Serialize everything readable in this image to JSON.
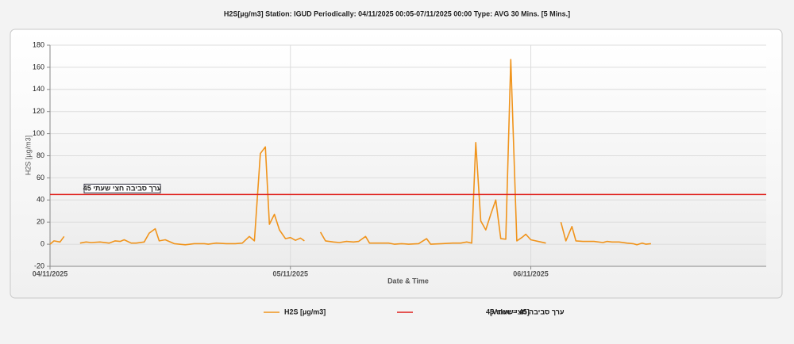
{
  "chart_data": {
    "type": "line",
    "title": "H2S[µg/m3] Station: IGUD  Periodically: 04/11/2025 00:05-07/11/2025 00:00  Type: AVG 30 Mins. [5 Mins.]",
    "x_label": "Date & Time",
    "y_label": "H2S [µg/m3]",
    "xlim": [
      0,
      71.5
    ],
    "xticks": [
      {
        "value": 0,
        "label": "04/11/2025"
      },
      {
        "value": 24,
        "label": "05/11/2025"
      },
      {
        "value": 48,
        "label": "06/11/2025"
      }
    ],
    "ylim": [
      -20,
      180
    ],
    "yticks": [
      -20,
      0,
      20,
      40,
      60,
      80,
      100,
      120,
      140,
      160,
      180
    ],
    "grid": true,
    "series": [
      {
        "name": "H2S [µg/m3]",
        "color": "#f0941c",
        "x": [
          0,
          0.4,
          1.0,
          1.4,
          2,
          3.0,
          3.6,
          4.1,
          5.0,
          5.9,
          6.5,
          7.0,
          7.4,
          8.1,
          8.6,
          9.4,
          9.9,
          10.5,
          10.9,
          11.5,
          12.4,
          13.5,
          14.4,
          15.4,
          15.8,
          16.6,
          17.6,
          18.5,
          19.2,
          19.9,
          20.4,
          21.0,
          21.5,
          21.9,
          22.4,
          22.9,
          23.5,
          24.0,
          24.5,
          25.0,
          25.4,
          26,
          27.0,
          27.5,
          28.3,
          28.9,
          29.6,
          30.3,
          30.8,
          31.5,
          31.9,
          32.9,
          33.8,
          34.4,
          35.1,
          35.8,
          36.8,
          37.6,
          38.0,
          39.1,
          40.2,
          41.0,
          41.6,
          42.1,
          42.5,
          43.0,
          43.5,
          44.0,
          44.5,
          45.0,
          45.5,
          46.0,
          46.6,
          47.1,
          47.5,
          48.0,
          49.0,
          49.5,
          50,
          51.0,
          51.5,
          52.1,
          52.5,
          53.2,
          54.3,
          55.2,
          55.6,
          56.1,
          56.8,
          57.6,
          58.2,
          58.6,
          59.1,
          59.5,
          60.0
        ],
        "values": [
          0,
          3,
          2,
          7,
          null,
          1,
          2,
          1.5,
          2,
          1,
          3,
          2.5,
          4,
          1,
          1,
          2,
          10,
          14,
          3,
          4,
          0.5,
          -0.5,
          0.5,
          0.5,
          0,
          1,
          0.5,
          0.5,
          1,
          7,
          3,
          82,
          88,
          18,
          27,
          13,
          5,
          6,
          3.5,
          5.5,
          3,
          null,
          11,
          3,
          2,
          1.5,
          2.5,
          2,
          2.5,
          7,
          1,
          1,
          1,
          0,
          0.5,
          0,
          0.5,
          5,
          0,
          0.5,
          1,
          1,
          2,
          1,
          92,
          21,
          13,
          27,
          40,
          5,
          4.5,
          167,
          3,
          6,
          9,
          4,
          2,
          1,
          null,
          20,
          3,
          16,
          3,
          2.5,
          2.5,
          1.5,
          2.5,
          2,
          2,
          1,
          0.5,
          -0.5,
          1,
          0,
          0.5
        ]
      }
    ],
    "reference_line": {
      "name": "ערך סביבה חצי שעתי 45",
      "value": 45,
      "color": "#e0201c",
      "legend_note": "[Value = 45]"
    }
  }
}
